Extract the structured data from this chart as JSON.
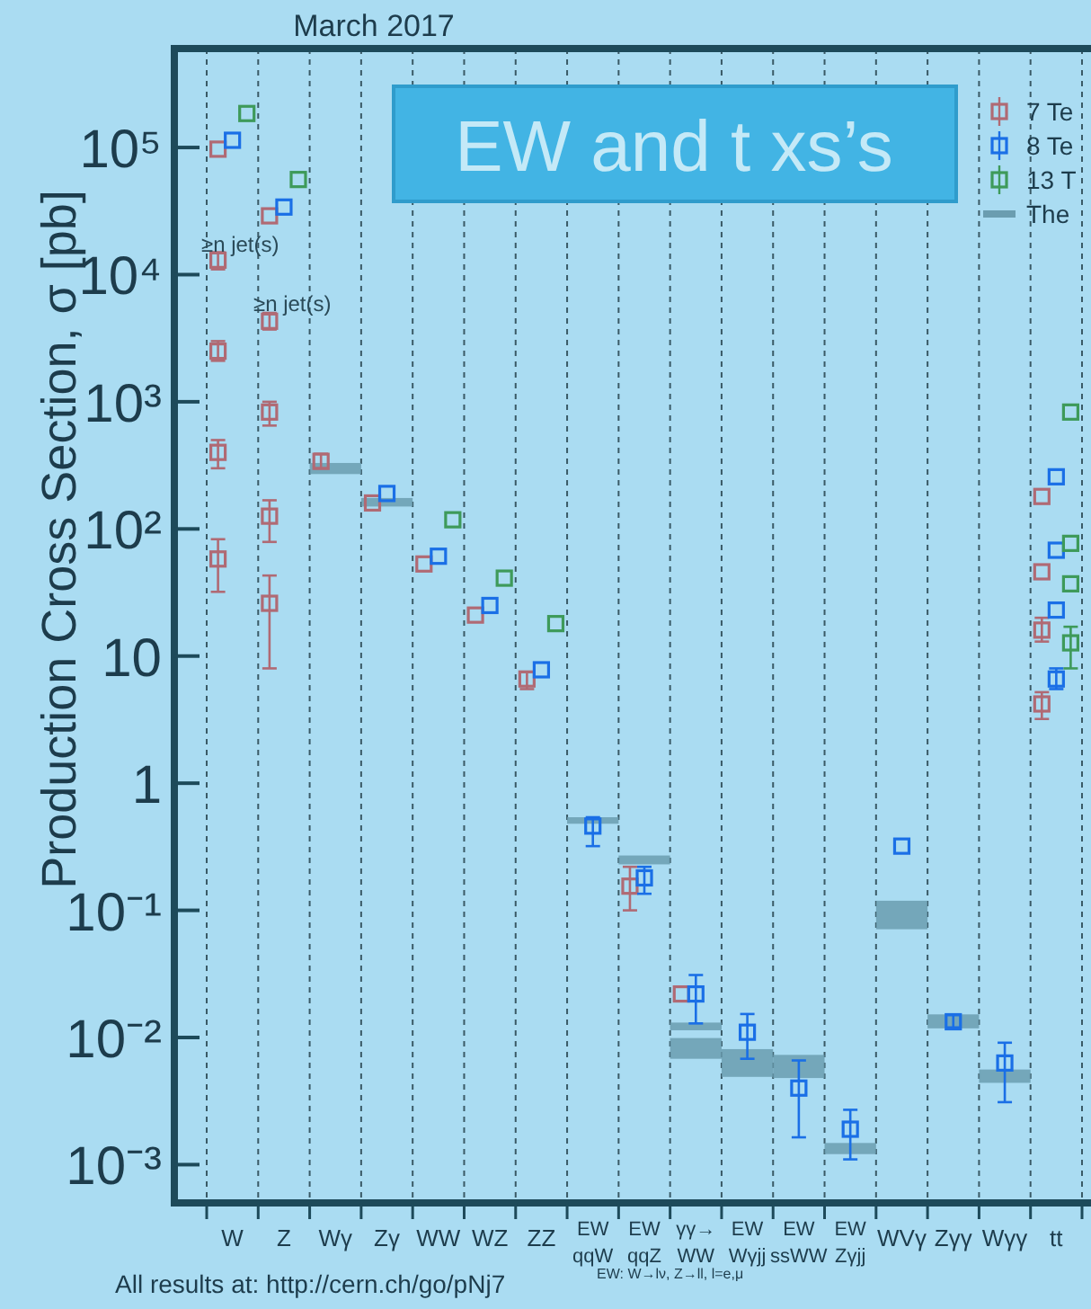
{
  "chart_data": {
    "type": "scatter",
    "title": "March 2017",
    "ylabel": "Production Cross Section, σ [pb]",
    "categories": [
      "W",
      "Z",
      "Wγ",
      "Zγ",
      "WW",
      "WZ",
      "ZZ",
      "EW qqW",
      "EW qqZ",
      "γγ→WW",
      "EW Wγjj",
      "EW ssWW",
      "EW Zγjj",
      "WVγ",
      "Zγγ",
      "Wγγ",
      "tt"
    ],
    "log": "y",
    "ylim": [
      0.0005,
      600000
    ],
    "yticks": [
      {
        "value": 0.001,
        "label": "10⁻³"
      },
      {
        "value": 0.01,
        "label": "10⁻²"
      },
      {
        "value": 0.1,
        "label": "10⁻¹"
      },
      1,
      10,
      {
        "value": 100,
        "label": "10²"
      },
      {
        "value": 1000,
        "label": "10³"
      },
      {
        "value": 10000,
        "label": "10⁴"
      },
      {
        "value": 100000,
        "label": "10⁵"
      }
    ],
    "grid": "x",
    "legend": "top right",
    "marker": "square",
    "series": [
      {
        "name": "The",
        "type": "bar",
        "color": "#6b9db0",
        "x": [
          "Wγ",
          "Zγ",
          "EW qqW",
          "EW qqZ",
          "γγ→WW",
          "γγ→WW",
          "EW Wγjj",
          "EW ssWW",
          "EW Zγjj",
          "WVγ",
          "Zγγ",
          "Wγγ"
        ],
        "base": [
          270,
          150,
          0.48,
          0.23,
          0.0068,
          0.0114,
          0.0049,
          0.0048,
          0.00121,
          0.071,
          0.0118,
          0.0044
        ],
        "values": [
          60,
          25,
          0.06,
          0.04,
          0.0031,
          0.0017,
          0.0032,
          0.0025,
          0.00027,
          0.048,
          0.0034,
          0.0012
        ]
      },
      {
        "name": "7 Te",
        "color": "#b06a74",
        "x": [
          "W",
          "W",
          "W",
          "W",
          "W",
          "Z",
          "Z",
          "Z",
          "Z",
          "Z",
          "Wγ",
          "Zγ",
          "WW",
          "WZ",
          "ZZ",
          "EW qqZ",
          "γγ→WW",
          "tt",
          "tt",
          "tt",
          "tt"
        ],
        "values": [
          97000,
          13000,
          2500,
          400,
          58,
          29000,
          4300,
          830,
          126,
          26,
          340,
          160,
          53,
          21,
          6.6,
          0.155,
          0.022,
          180,
          46,
          16,
          4.2
        ],
        "errors": [
          null,
          [
            11000,
            15000
          ],
          [
            2100,
            3000
          ],
          [
            300,
            500
          ],
          [
            32,
            83
          ],
          null,
          [
            3700,
            5000
          ],
          [
            650,
            1000
          ],
          [
            79,
            168
          ],
          [
            8,
            43
          ],
          [
            300,
            390
          ],
          null,
          null,
          null,
          [
            5.5,
            7.5
          ],
          [
            0.1,
            0.22
          ],
          null,
          null,
          null,
          [
            13,
            20
          ],
          [
            3.2,
            5.2
          ]
        ]
      },
      {
        "name": "8 Te",
        "color": "#1a6fe6",
        "x": [
          "W",
          "Z",
          "Zγ",
          "WW",
          "WZ",
          "ZZ",
          "EW qqW",
          "EW qqZ",
          "γγ→WW",
          "EW Wγjj",
          "EW ssWW",
          "EW Zγjj",
          "WVγ",
          "Zγγ",
          "Wγγ",
          "tt",
          "tt",
          "tt",
          "tt"
        ],
        "values": [
          114000,
          34000,
          190,
          61,
          25,
          7.8,
          0.46,
          0.18,
          0.022,
          0.011,
          0.004,
          0.0019,
          0.32,
          0.0133,
          0.0063,
          257,
          68,
          23,
          6.6
        ],
        "errors": [
          null,
          null,
          null,
          null,
          null,
          null,
          [
            0.32,
            0.54
          ],
          [
            0.135,
            0.22
          ],
          [
            0.0129,
            0.031
          ],
          [
            0.0068,
            0.0153
          ],
          [
            0.00164,
            0.0066
          ],
          [
            0.0011,
            0.0027
          ],
          null,
          [
            0.012,
            0.015
          ],
          [
            0.0031,
            0.0091
          ],
          null,
          null,
          null,
          [
            5.5,
            8
          ]
        ]
      },
      {
        "name": "13 T",
        "color": "#3e9a5a",
        "x": [
          "W",
          "Z",
          "WW",
          "WZ",
          "ZZ",
          "tt",
          "tt",
          "tt",
          "tt"
        ],
        "values": [
          185000,
          56000,
          118,
          41,
          18,
          830,
          77,
          37,
          12.7
        ],
        "errors": [
          null,
          null,
          null,
          null,
          null,
          null,
          null,
          null,
          [
            8,
            17
          ]
        ]
      }
    ],
    "annotations": [
      "EW and t xs’s",
      "≥n jet(s)",
      "≥n jet(s)",
      "All results at: http://cern.ch/go/pNj7",
      "EW: W→lν, Z→ll, l=e,μ"
    ]
  }
}
